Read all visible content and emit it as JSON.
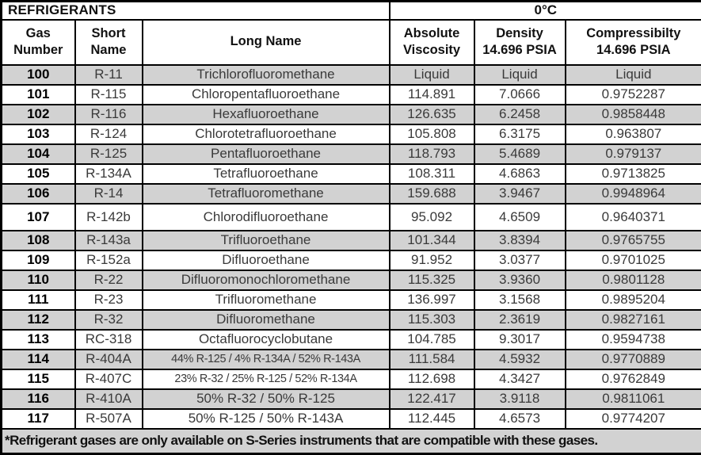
{
  "title": {
    "left": "REFRIGERANTS",
    "right": "0°C"
  },
  "table": {
    "columns": [
      {
        "lines": [
          "Gas",
          "Number"
        ]
      },
      {
        "lines": [
          "Short",
          "Name"
        ]
      },
      {
        "lines": [
          "Long Name"
        ]
      },
      {
        "lines": [
          "Absolute",
          "Viscosity"
        ]
      },
      {
        "lines": [
          "Density",
          "14.696 PSIA"
        ]
      },
      {
        "lines": [
          "Compressibilty",
          "14.696 PSIA"
        ]
      }
    ],
    "rows": [
      [
        "100",
        "R-11",
        "Trichlorofluoromethane",
        "Liquid",
        "Liquid",
        "Liquid"
      ],
      [
        "101",
        "R-115",
        "Chloropentafluoroethane",
        "114.891",
        "7.0666",
        "0.9752287"
      ],
      [
        "102",
        "R-116",
        "Hexafluoroethane",
        "126.635",
        "6.2458",
        "0.9858448"
      ],
      [
        "103",
        "R-124",
        "Chlorotetrafluoroethane",
        "105.808",
        "6.3175",
        "0.963807"
      ],
      [
        "104",
        "R-125",
        "Pentafluoroethane",
        "118.793",
        "5.4689",
        "0.979137"
      ],
      [
        "105",
        "R-134A",
        "Tetrafluoroethane",
        "108.311",
        "4.6863",
        "0.9713825"
      ],
      [
        "106",
        "R-14",
        "Tetrafluoromethane",
        "159.688",
        "3.9467",
        "0.9948964"
      ],
      [
        "107",
        "R-142b",
        "Chlorodifluoroethane",
        "95.092",
        "4.6509",
        "0.9640371"
      ],
      [
        "108",
        "R-143a",
        "Trifluoroethane",
        "101.344",
        "3.8394",
        "0.9765755"
      ],
      [
        "109",
        "R-152a",
        "Difluoroethane",
        "91.952",
        "3.0377",
        "0.9701025"
      ],
      [
        "110",
        "R-22",
        "Difluoromonochloromethane",
        "115.325",
        "3.9360",
        "0.9801128"
      ],
      [
        "111",
        "R-23",
        "Trifluoromethane",
        "136.997",
        "3.1568",
        "0.9895204"
      ],
      [
        "112",
        "R-32",
        "Difluoromethane",
        "115.303",
        "2.3619",
        "0.9827161"
      ],
      [
        "113",
        "RC-318",
        "Octafluorocyclobutane",
        "104.785",
        "9.3017",
        "0.9594738"
      ],
      [
        "114",
        "R-404A",
        "44% R-125 / 4% R-134A / 52% R-143A",
        "111.584",
        "4.5932",
        "0.9770889"
      ],
      [
        "115",
        "R-407C",
        "23% R-32 / 25% R-125 / 52% R-134A",
        "112.698",
        "4.3427",
        "0.9762849"
      ],
      [
        "116",
        "R-410A",
        "50% R-32 / 50% R-125",
        "122.417",
        "3.9118",
        "0.9811061"
      ],
      [
        "117",
        "R-507A",
        "50% R-125 / 50% R-143A",
        "112.445",
        "4.6573",
        "0.9774207"
      ]
    ]
  },
  "footnote": "*Refrigerant gases are only available on S-Series instruments that are compatible with these gases.",
  "colors": {
    "row_shade": "#d2d2d2",
    "border": "#000000",
    "data_text": "#3a3a3a"
  }
}
